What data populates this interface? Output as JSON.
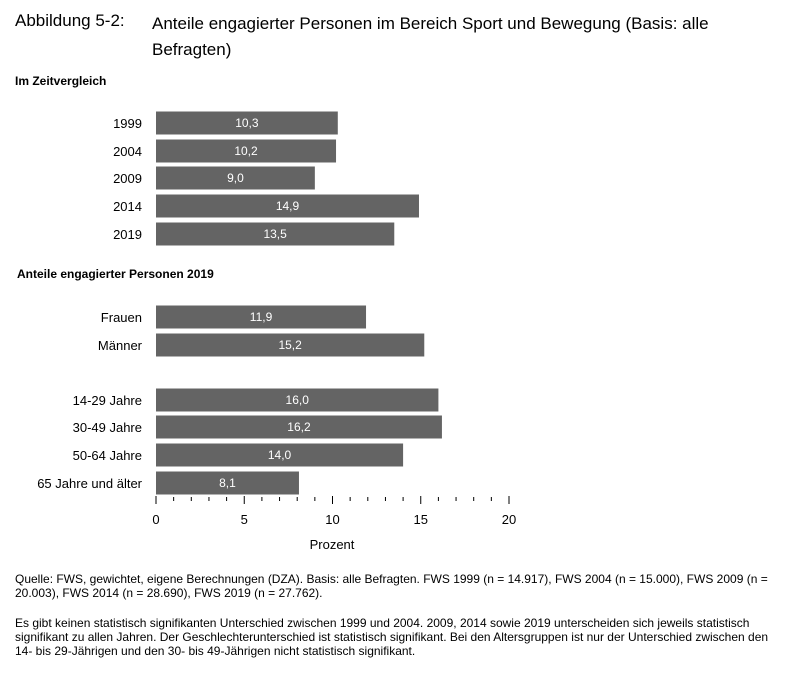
{
  "figure": {
    "label": "Abbildung 5-2:",
    "title": "Anteile engagierter Personen im Bereich Sport und Bewegung (Basis: alle Befragten)"
  },
  "chart_data": [
    {
      "type": "bar",
      "orientation": "horizontal",
      "title": "Im Zeitvergleich",
      "categories": [
        "1999",
        "2004",
        "2009",
        "2014",
        "2019"
      ],
      "values": [
        10.3,
        10.2,
        9.0,
        14.9,
        13.5
      ],
      "value_labels": [
        "10,3",
        "10,2",
        "9,0",
        "14,9",
        "13,5"
      ],
      "xlabel": "Prozent",
      "xlim": [
        0,
        20
      ],
      "bar_color": "#646464"
    },
    {
      "type": "bar",
      "orientation": "horizontal",
      "title": "Anteile engagierter Personen 2019",
      "categories": [
        "Frauen",
        "Männer",
        "14-29 Jahre",
        "30-49 Jahre",
        "50-64 Jahre",
        "65 Jahre und älter"
      ],
      "values": [
        11.9,
        15.2,
        16.0,
        16.2,
        14.0,
        8.1
      ],
      "value_labels": [
        "11,9",
        "15,2",
        "16,0",
        "16,2",
        "14,0",
        "8,1"
      ],
      "xlabel": "Prozent",
      "xlim": [
        0,
        20
      ],
      "xticks": [
        "0",
        "5",
        "10",
        "15",
        "20"
      ],
      "bar_color": "#646464"
    }
  ],
  "notes": {
    "source": "Quelle: FWS, gewichtet, eigene Berechnungen (DZA). Basis: alle Befragten. FWS 1999 (n = 14.917), FWS 2004 (n = 15.000), FWS 2009 (n = 20.003), FWS 2014 (n = 28.690), FWS 2019 (n = 27.762).",
    "significance": "Es gibt keinen statistisch signifikanten Unterschied zwischen 1999 und 2004. 2009, 2014 sowie 2019 unterscheiden sich jeweils statistisch signifikant zu allen Jahren. Der Geschlechterunterschied ist statistisch signifikant. Bei den Altersgruppen ist nur der Unterschied zwischen den 14- bis 29-Jährigen und den 30- bis 49-Jährigen nicht statistisch signifikant."
  }
}
